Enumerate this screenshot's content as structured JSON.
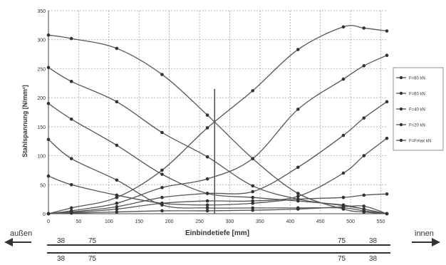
{
  "chart_data": {
    "type": "line",
    "xlabel": "Einbindetiefe [mm]",
    "ylabel": "Stahlspannung [N/mm²]",
    "xlim": [
      0,
      560
    ],
    "ylim": [
      0,
      350
    ],
    "x_ticks": [
      0,
      50,
      100,
      150,
      200,
      250,
      300,
      350,
      400,
      450,
      500,
      550
    ],
    "y_ticks": [
      0,
      50,
      100,
      150,
      200,
      250,
      300,
      350
    ],
    "grid": true,
    "legend_position": "right",
    "annotation_line_x": 275,
    "x": [
      0,
      38,
      113,
      188,
      263,
      338,
      413,
      488,
      522,
      560
    ],
    "series": [
      {
        "name": "F=80 kN",
        "values": [
          308,
          302,
          285,
          240,
          170,
          95,
          35,
          8,
          3,
          0
        ]
      },
      {
        "name": "F=60 kN",
        "values": [
          252,
          228,
          193,
          140,
          98,
          48,
          25,
          14,
          8,
          0
        ]
      },
      {
        "name": "F=40 kN",
        "values": [
          190,
          163,
          118,
          68,
          35,
          28,
          22,
          15,
          8,
          0
        ]
      },
      {
        "name": "F=20 kN",
        "values": [
          128,
          95,
          58,
          15,
          10,
          10,
          10,
          10,
          5,
          0
        ]
      },
      {
        "name": "F=Fmax kN",
        "values": [
          65,
          50,
          32,
          18,
          15,
          18,
          25,
          28,
          32,
          34
        ]
      },
      {
        "name": "",
        "values": [
          0,
          10,
          28,
          75,
          148,
          212,
          283,
          322,
          320,
          315
        ]
      },
      {
        "name": "",
        "values": [
          0,
          5,
          18,
          45,
          60,
          95,
          180,
          232,
          255,
          273
        ]
      },
      {
        "name": "",
        "values": [
          0,
          3,
          12,
          28,
          35,
          38,
          80,
          135,
          165,
          193
        ]
      },
      {
        "name": "",
        "values": [
          0,
          2,
          8,
          18,
          22,
          22,
          30,
          70,
          100,
          130
        ]
      },
      {
        "name": "",
        "values": [
          0,
          1,
          3,
          5,
          5,
          6,
          8,
          12,
          13,
          0
        ]
      }
    ]
  },
  "bar_diagram": {
    "left_label": "außen",
    "right_label": "innen",
    "top_labels": [
      "38",
      "75",
      "75",
      "38"
    ],
    "bottom_labels": [
      "38",
      "75",
      "75",
      "38"
    ]
  }
}
